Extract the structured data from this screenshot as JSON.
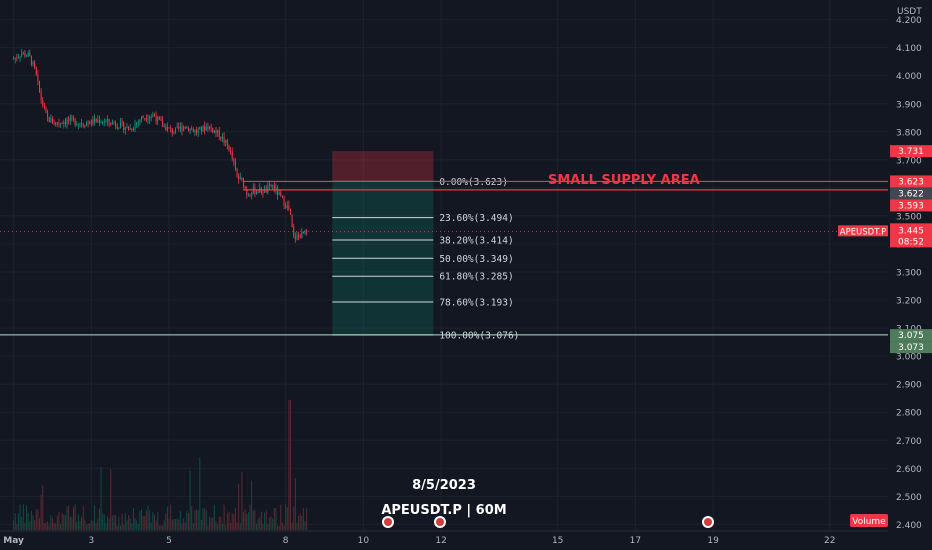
{
  "chart_data": {
    "type": "candlestick",
    "symbol_label": "APEUSDT.P | 60M",
    "date_label": "8/5/2023",
    "currency_label": "USDT",
    "annotation": "SMALL SUPPLY AREA",
    "volume_label": "Volume",
    "price_axis": {
      "ylim": [
        2.38,
        4.27
      ],
      "ticks": [
        "4.200",
        "4.100",
        "4.000",
        "3.900",
        "3.800",
        "3.700",
        "3.600",
        "3.500",
        "3.400",
        "3.300",
        "3.200",
        "3.100",
        "3.000",
        "2.900",
        "2.800",
        "2.700",
        "2.600",
        "2.500",
        "2.400"
      ]
    },
    "time_axis": {
      "ticks": [
        {
          "label": "May",
          "day": 1
        },
        {
          "label": "3",
          "day": 3
        },
        {
          "label": "5",
          "day": 5
        },
        {
          "label": "8",
          "day": 8
        },
        {
          "label": "10",
          "day": 10
        },
        {
          "label": "12",
          "day": 12
        },
        {
          "label": "15",
          "day": 15
        },
        {
          "label": "17",
          "day": 17
        },
        {
          "label": "19",
          "day": 19
        },
        {
          "label": "22",
          "day": 22
        }
      ],
      "xlim": [
        0.65,
        23.5
      ]
    },
    "supply_area": {
      "top": 3.623,
      "bottom": 3.593
    },
    "position": {
      "entry": 3.623,
      "stop": 3.731,
      "target": 3.076,
      "start_day": 9.2,
      "end_day": 11.8
    },
    "fib_levels": [
      {
        "label": "0.00%(3.623)",
        "price": 3.623
      },
      {
        "label": "23.60%(3.494)",
        "price": 3.494
      },
      {
        "label": "38.20%(3.414)",
        "price": 3.414
      },
      {
        "label": "50.00%(3.349)",
        "price": 3.349
      },
      {
        "label": "61.80%(3.285)",
        "price": 3.285
      },
      {
        "label": "78.60%(3.193)",
        "price": 3.193
      },
      {
        "label": "100.00%(3.076)",
        "price": 3.076
      }
    ],
    "horizontal_line": 3.076,
    "current_price": 3.445,
    "countdown": "08:52",
    "price_tags": [
      {
        "text": "3.731",
        "price": 3.731,
        "color": "#f23645"
      },
      {
        "text": "3.623",
        "price": 3.623,
        "color": "#f23645",
        "offset": 0
      },
      {
        "text": "3.622",
        "price": 3.622,
        "color": "#434651",
        "offset": 1
      },
      {
        "text": "3.593",
        "price": 3.593,
        "color": "#f23645",
        "offset": 2
      },
      {
        "text": "3.075",
        "price": 3.075,
        "color": "#4f7d5b"
      },
      {
        "text": "3.073",
        "price": 3.073,
        "color": "#4f7d5b",
        "offset": 1
      }
    ],
    "close_path": [
      [
        1.0,
        4.06
      ],
      [
        1.2,
        4.08
      ],
      [
        1.4,
        4.07
      ],
      [
        1.55,
        4.02
      ],
      [
        1.7,
        3.92
      ],
      [
        1.85,
        3.85
      ],
      [
        2.05,
        3.83
      ],
      [
        2.4,
        3.84
      ],
      [
        2.8,
        3.83
      ],
      [
        3.2,
        3.84
      ],
      [
        3.6,
        3.83
      ],
      [
        4.0,
        3.81
      ],
      [
        4.3,
        3.85
      ],
      [
        4.6,
        3.86
      ],
      [
        4.85,
        3.82
      ],
      [
        5.1,
        3.8
      ],
      [
        5.4,
        3.82
      ],
      [
        5.7,
        3.8
      ],
      [
        6.0,
        3.82
      ],
      [
        6.3,
        3.79
      ],
      [
        6.55,
        3.74
      ],
      [
        6.75,
        3.64
      ],
      [
        6.9,
        3.62
      ],
      [
        7.0,
        3.58
      ],
      [
        7.2,
        3.59
      ],
      [
        7.5,
        3.59
      ],
      [
        7.65,
        3.61
      ],
      [
        7.8,
        3.58
      ],
      [
        7.95,
        3.55
      ],
      [
        8.1,
        3.52
      ],
      [
        8.2,
        3.42
      ],
      [
        8.35,
        3.43
      ],
      [
        8.55,
        3.44
      ]
    ],
    "colors": {
      "up": "#089981",
      "down": "#f23645",
      "background": "#131722"
    }
  }
}
